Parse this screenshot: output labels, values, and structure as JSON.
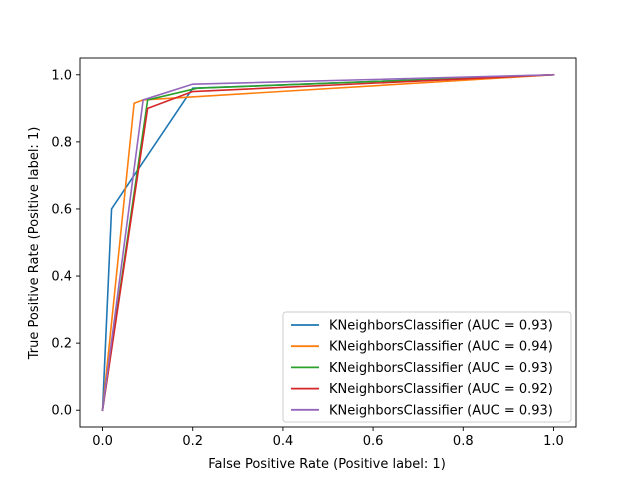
{
  "chart_data": {
    "type": "line",
    "title": "",
    "xlabel": "False Positive Rate (Positive label: 1)",
    "ylabel": "True Positive Rate (Positive label: 1)",
    "xlim": [
      -0.05,
      1.05
    ],
    "ylim": [
      -0.05,
      1.05
    ],
    "xticks": [
      0.0,
      0.2,
      0.4,
      0.6,
      0.8,
      1.0
    ],
    "yticks": [
      0.0,
      0.2,
      0.4,
      0.6,
      0.8,
      1.0
    ],
    "xtick_labels": [
      "0.0",
      "0.2",
      "0.4",
      "0.6",
      "0.8",
      "1.0"
    ],
    "ytick_labels": [
      "0.0",
      "0.2",
      "0.4",
      "0.6",
      "0.8",
      "1.0"
    ],
    "grid": false,
    "legend_position": "lower-right",
    "series": [
      {
        "name": "KNeighborsClassifier (AUC = 0.93)",
        "color": "#1f77b4",
        "x": [
          0.0,
          0.02,
          0.2,
          1.0
        ],
        "y": [
          0.0,
          0.6,
          0.96,
          1.0
        ]
      },
      {
        "name": "KNeighborsClassifier (AUC = 0.94)",
        "color": "#ff7f0e",
        "x": [
          0.0,
          0.07,
          0.09,
          1.0
        ],
        "y": [
          0.0,
          0.915,
          0.925,
          1.0
        ]
      },
      {
        "name": "KNeighborsClassifier (AUC = 0.93)",
        "color": "#2ca02c",
        "x": [
          0.0,
          0.1,
          0.21,
          1.0
        ],
        "y": [
          0.0,
          0.925,
          0.96,
          1.0
        ]
      },
      {
        "name": "KNeighborsClassifier (AUC = 0.92)",
        "color": "#d62728",
        "x": [
          0.0,
          0.1,
          0.2,
          1.0
        ],
        "y": [
          0.0,
          0.9,
          0.95,
          1.0
        ]
      },
      {
        "name": "KNeighborsClassifier (AUC = 0.93)",
        "color": "#9467bd",
        "x": [
          0.0,
          0.09,
          0.2,
          1.0
        ],
        "y": [
          0.0,
          0.925,
          0.972,
          1.0
        ]
      }
    ]
  }
}
